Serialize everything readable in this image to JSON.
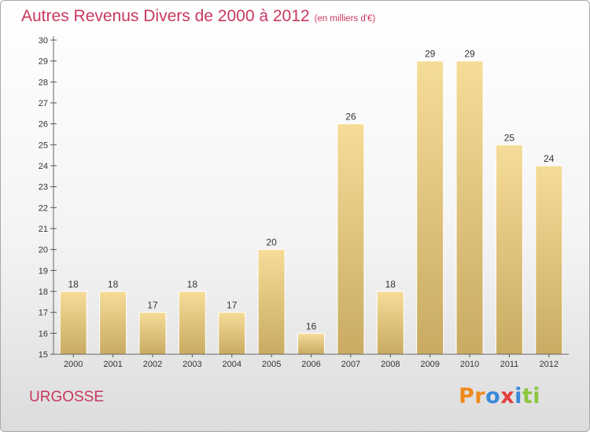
{
  "title": "Autres Revenus Divers de 2000 à 2012",
  "subtitle": "(en milliers d'€)",
  "place": "URGOSSE",
  "logo": {
    "letters": [
      "P",
      "r",
      "o",
      "x",
      "i",
      "t",
      "i"
    ],
    "colors": [
      "#f08a1d",
      "#f08a1d",
      "#3a88d8",
      "#e33e3e",
      "#3a88d8",
      "#8cc63e",
      "#8cc63e"
    ]
  },
  "colors": {
    "bar_top": "#f5dc98",
    "bar_bottom": "#c9ab62",
    "title": "#c8385e"
  },
  "chart_data": {
    "type": "bar",
    "categories": [
      "2000",
      "2001",
      "2002",
      "2003",
      "2004",
      "2005",
      "2006",
      "2007",
      "2008",
      "2009",
      "2010",
      "2011",
      "2012"
    ],
    "values": [
      18,
      18,
      17,
      18,
      17,
      20,
      16,
      26,
      18,
      29,
      29,
      25,
      24
    ],
    "ylim": [
      15,
      30
    ],
    "yticks": [
      15,
      16,
      17,
      18,
      19,
      20,
      21,
      22,
      23,
      24,
      25,
      26,
      27,
      28,
      29,
      30
    ],
    "grid": false
  }
}
